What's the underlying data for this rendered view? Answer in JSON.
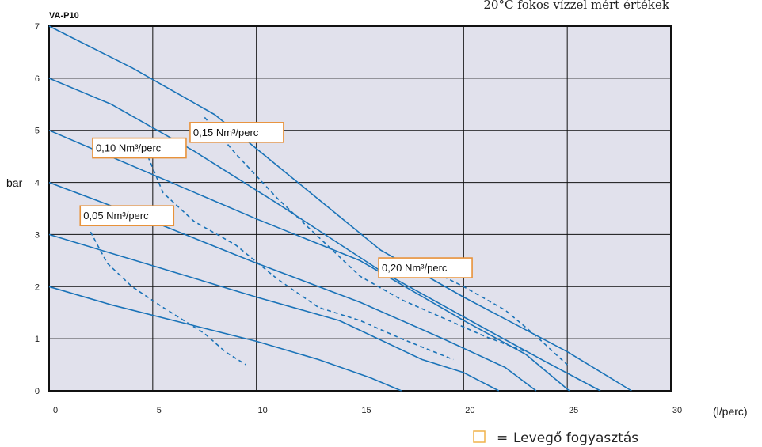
{
  "chart_data": {
    "type": "line",
    "title": "VA-P10",
    "subtitle": "20°C fokos vízzel mért értékek",
    "xlabel": "(l/perc)",
    "ylabel": "bar",
    "xlim": [
      0,
      30
    ],
    "ylim": [
      0,
      7
    ],
    "xticks": [
      "0",
      "5",
      "10",
      "15",
      "20",
      "25",
      "30"
    ],
    "yticks": [
      "0",
      "1",
      "2",
      "3",
      "4",
      "5",
      "6",
      "7"
    ],
    "grid": true,
    "line_color": "#1a73b8",
    "plot_bg": "#e1e1ec",
    "annotation_border": "#e8923a",
    "series": [
      {
        "style": "solid",
        "points": [
          [
            0,
            2
          ],
          [
            3,
            1.65
          ],
          [
            6.5,
            1.3
          ],
          [
            10,
            0.95
          ],
          [
            13,
            0.6
          ],
          [
            15.5,
            0.25
          ],
          [
            17,
            0
          ]
        ]
      },
      {
        "style": "solid",
        "points": [
          [
            0,
            3
          ],
          [
            5,
            2.4
          ],
          [
            10,
            1.8
          ],
          [
            14,
            1.35
          ],
          [
            18,
            0.6
          ],
          [
            20,
            0.35
          ],
          [
            21.7,
            0
          ]
        ]
      },
      {
        "style": "solid",
        "points": [
          [
            0,
            4
          ],
          [
            5,
            3.25
          ],
          [
            10,
            2.45
          ],
          [
            15,
            1.7
          ],
          [
            19,
            1.0
          ],
          [
            22,
            0.45
          ],
          [
            23.5,
            0
          ]
        ]
      },
      {
        "style": "solid",
        "points": [
          [
            0,
            5
          ],
          [
            5,
            4.15
          ],
          [
            10,
            3.3
          ],
          [
            15,
            2.5
          ],
          [
            20,
            1.35
          ],
          [
            23,
            0.7
          ],
          [
            25.1,
            0
          ]
        ]
      },
      {
        "style": "solid",
        "points": [
          [
            0,
            6
          ],
          [
            3,
            5.5
          ],
          [
            7,
            4.6
          ],
          [
            11,
            3.6
          ],
          [
            16,
            2.3
          ],
          [
            21,
            1.2
          ],
          [
            24,
            0.55
          ],
          [
            26.6,
            0
          ]
        ]
      },
      {
        "style": "solid",
        "points": [
          [
            0,
            7
          ],
          [
            4,
            6.2
          ],
          [
            8,
            5.3
          ],
          [
            12,
            4.0
          ],
          [
            16,
            2.7
          ],
          [
            20,
            1.8
          ],
          [
            25,
            0.75
          ],
          [
            28.1,
            0
          ]
        ]
      },
      {
        "style": "dashed",
        "points": [
          [
            2,
            3.05
          ],
          [
            2.8,
            2.45
          ],
          [
            4,
            2.0
          ],
          [
            5.5,
            1.6
          ],
          [
            7.5,
            1.1
          ],
          [
            8.5,
            0.75
          ],
          [
            9.5,
            0.5
          ]
        ]
      },
      {
        "style": "dashed",
        "points": [
          [
            4.5,
            4.75
          ],
          [
            5.5,
            3.8
          ],
          [
            7,
            3.25
          ],
          [
            9,
            2.8
          ],
          [
            11,
            2.15
          ],
          [
            13,
            1.6
          ],
          [
            15,
            1.35
          ],
          [
            17,
            1.0
          ],
          [
            19.5,
            0.6
          ]
        ]
      },
      {
        "style": "dashed",
        "points": [
          [
            7.5,
            5.25
          ],
          [
            9,
            4.55
          ],
          [
            11,
            3.7
          ],
          [
            13,
            2.95
          ],
          [
            15,
            2.2
          ],
          [
            17,
            1.75
          ],
          [
            19,
            1.4
          ],
          [
            21,
            1.05
          ],
          [
            23,
            0.75
          ]
        ]
      },
      {
        "style": "dashed",
        "points": [
          [
            17.5,
            2.5
          ],
          [
            20,
            2.0
          ],
          [
            22,
            1.55
          ],
          [
            23.5,
            1.05
          ],
          [
            25,
            0.5
          ]
        ]
      }
    ],
    "annotations": [
      {
        "text": "0,05 Nm³/perc",
        "x": 1.5,
        "y": 3.55
      },
      {
        "text": "0,10 Nm³/perc",
        "x": 2.1,
        "y": 4.85
      },
      {
        "text": "0,15 Nm³/perc",
        "x": 6.8,
        "y": 5.15
      },
      {
        "text": "0,20 Nm³/perc",
        "x": 15.9,
        "y": 2.55
      }
    ]
  },
  "legend": {
    "symbol": "□",
    "equals": "=",
    "text": "Levegő fogyasztás"
  }
}
